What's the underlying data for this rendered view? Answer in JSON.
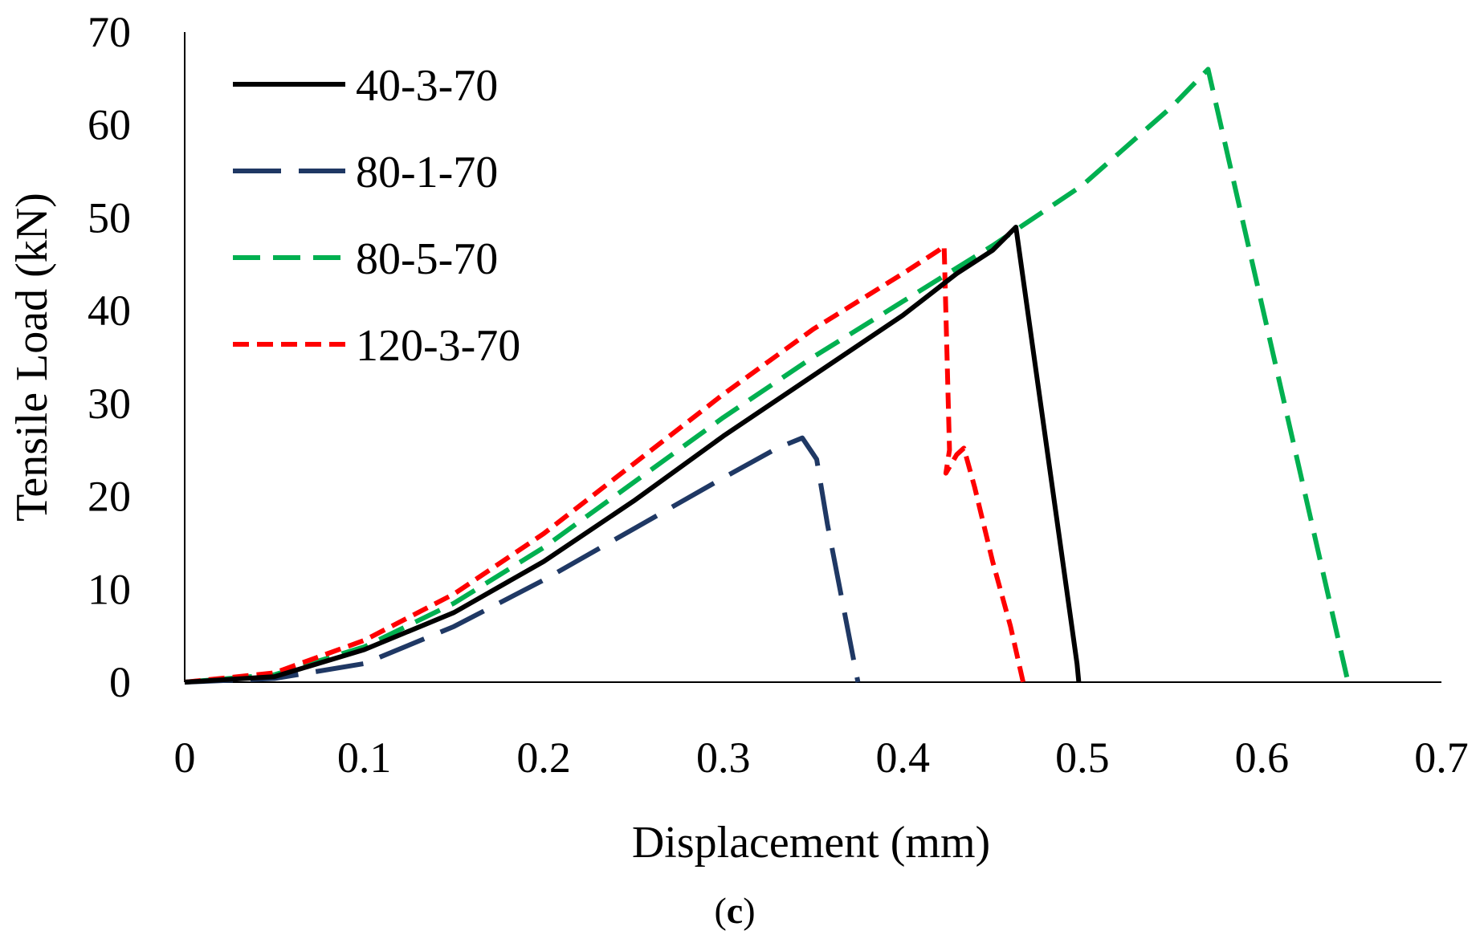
{
  "chart_data": {
    "type": "line",
    "title": "",
    "xlabel": "Displacement (mm)",
    "ylabel": "Tensile Load (kN)",
    "xlim": [
      0,
      0.7
    ],
    "ylim": [
      0,
      70
    ],
    "xticks": [
      "0",
      "0.1",
      "0.2",
      "0.3",
      "0.4",
      "0.5",
      "0.6",
      "0.7"
    ],
    "yticks": [
      "0",
      "10",
      "20",
      "30",
      "40",
      "50",
      "60",
      "70"
    ],
    "grid": false,
    "legend_position": "top-left",
    "caption": {
      "open": "(",
      "letter": "c",
      "close": ")"
    },
    "series": [
      {
        "name": "40-3-70",
        "color": "#000000",
        "dash": "solid",
        "points": [
          [
            0,
            0
          ],
          [
            0.05,
            0.6
          ],
          [
            0.1,
            3.5
          ],
          [
            0.15,
            7.5
          ],
          [
            0.2,
            13
          ],
          [
            0.25,
            19.5
          ],
          [
            0.3,
            26.5
          ],
          [
            0.35,
            33
          ],
          [
            0.4,
            39.5
          ],
          [
            0.43,
            44
          ],
          [
            0.45,
            46.5
          ],
          [
            0.463,
            49
          ],
          [
            0.497,
            2
          ],
          [
            0.498,
            0
          ]
        ]
      },
      {
        "name": "80-1-70",
        "color": "#1f3864",
        "dash": "long-dash",
        "points": [
          [
            0,
            0
          ],
          [
            0.05,
            0.4
          ],
          [
            0.1,
            2
          ],
          [
            0.15,
            6
          ],
          [
            0.2,
            11
          ],
          [
            0.25,
            16.5
          ],
          [
            0.3,
            22
          ],
          [
            0.33,
            25.2
          ],
          [
            0.344,
            26.3
          ],
          [
            0.352,
            24
          ],
          [
            0.358,
            17
          ],
          [
            0.375,
            0
          ]
        ]
      },
      {
        "name": "80-5-70",
        "color": "#00b050",
        "dash": "dash",
        "points": [
          [
            0,
            0
          ],
          [
            0.05,
            0.8
          ],
          [
            0.1,
            3.8
          ],
          [
            0.15,
            8.5
          ],
          [
            0.2,
            14.5
          ],
          [
            0.25,
            21.5
          ],
          [
            0.3,
            28.5
          ],
          [
            0.35,
            35
          ],
          [
            0.4,
            41
          ],
          [
            0.45,
            47
          ],
          [
            0.5,
            53.5
          ],
          [
            0.55,
            62
          ],
          [
            0.57,
            66
          ],
          [
            0.648,
            0
          ]
        ]
      },
      {
        "name": "120-3-70",
        "color": "#ff0000",
        "dash": "short-dash",
        "points": [
          [
            0,
            0
          ],
          [
            0.05,
            1
          ],
          [
            0.1,
            4.5
          ],
          [
            0.15,
            9.5
          ],
          [
            0.2,
            16
          ],
          [
            0.25,
            23.5
          ],
          [
            0.3,
            31
          ],
          [
            0.35,
            38
          ],
          [
            0.4,
            44
          ],
          [
            0.42,
            46.5
          ],
          [
            0.423,
            47
          ],
          [
            0.426,
            25
          ],
          [
            0.424,
            22.5
          ],
          [
            0.43,
            24.5
          ],
          [
            0.434,
            25.2
          ],
          [
            0.44,
            21
          ],
          [
            0.45,
            13
          ],
          [
            0.46,
            6
          ],
          [
            0.467,
            0
          ]
        ]
      }
    ]
  }
}
